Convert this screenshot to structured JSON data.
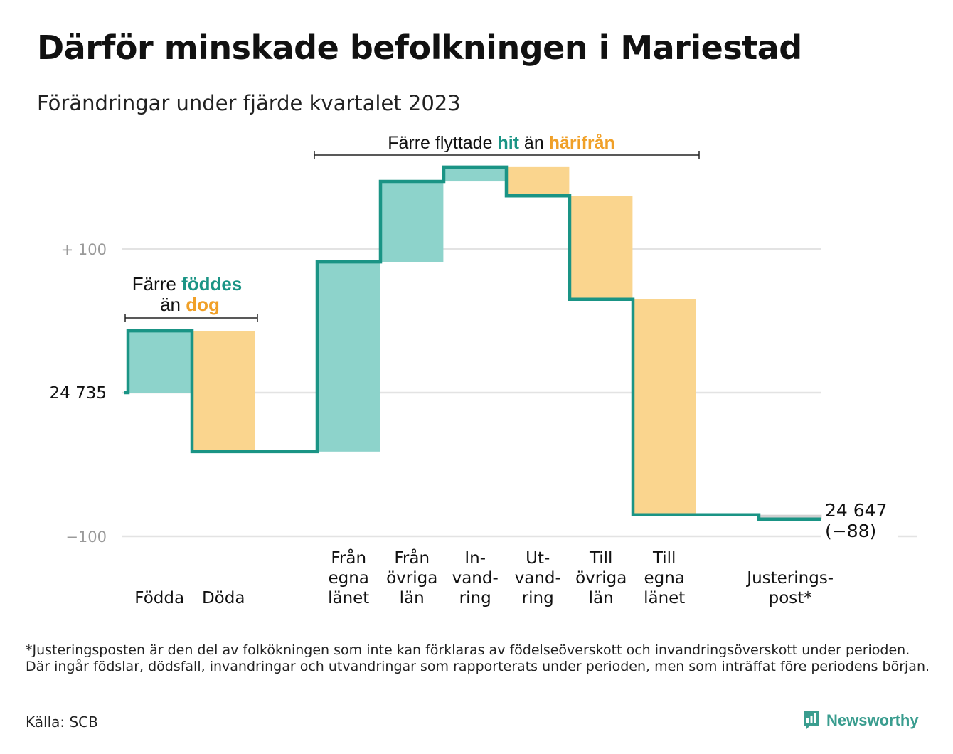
{
  "title": "Därför minskade befolkningen i Mariestad",
  "subtitle": "Förändringar under fjärde kvartalet 2023",
  "colors": {
    "teal_line": "#1a9485",
    "teal_fill": "#8dd3cb",
    "orange_fill": "#fad58e",
    "teal_text": "#1a9485",
    "orange_text": "#f0a028",
    "grid": "#e3e3e3",
    "axis_text": "#9a9a9a",
    "adjust_fill": "#d0d0d0"
  },
  "chart_data": {
    "type": "waterfall",
    "start_value": 24735,
    "end_value": 24647,
    "net_change": -88,
    "y_axis": {
      "range_relative": [
        -100,
        100
      ],
      "ticks": [
        {
          "value": 100,
          "label": "+  100"
        },
        {
          "value": 0,
          "label": "24  735"
        },
        {
          "value": -100,
          "label": "−100"
        }
      ],
      "grid": true
    },
    "steps": [
      {
        "label_lines": [
          "Födda"
        ],
        "value": 43,
        "kind": "in"
      },
      {
        "label_lines": [
          "Döda"
        ],
        "value": -84,
        "kind": "out"
      },
      {
        "label_lines": [
          "Från",
          "egna",
          "länet"
        ],
        "value": 132,
        "kind": "in"
      },
      {
        "label_lines": [
          "Från",
          "övriga",
          "län"
        ],
        "value": 56,
        "kind": "in"
      },
      {
        "label_lines": [
          "In-",
          "vand-",
          "ring"
        ],
        "value": 10,
        "kind": "in"
      },
      {
        "label_lines": [
          "Ut-",
          "vand-",
          "ring"
        ],
        "value": -20,
        "kind": "out"
      },
      {
        "label_lines": [
          "Till",
          "övriga",
          "län"
        ],
        "value": -72,
        "kind": "out"
      },
      {
        "label_lines": [
          "Till",
          "egna",
          "länet"
        ],
        "value": -150,
        "kind": "out"
      },
      {
        "label_lines": [
          "Justerings-",
          "post*"
        ],
        "value": -3,
        "kind": "adjust"
      }
    ],
    "end_label": [
      "24 647",
      "(−88)"
    ],
    "annotations": {
      "births": {
        "line1_prefix": "Färre ",
        "line1_highlight": "föddes",
        "line2_prefix": "än ",
        "line2_highlight": "dog"
      },
      "migration": {
        "prefix": "Färre flyttade ",
        "hl1": "hit",
        "middle": " än ",
        "hl2": "härifrån"
      }
    }
  },
  "footnote": "*Justeringsposten är den del av folkökningen som inte kan förklaras av födelseöverskott och invandringsöverskott under perioden. Där ingår födslar, dödsfall, invandringar och utvandringar som rapporterats under perioden, men som inträffat före periodens början.",
  "source": "Källa: SCB",
  "brand": "Newsworthy"
}
